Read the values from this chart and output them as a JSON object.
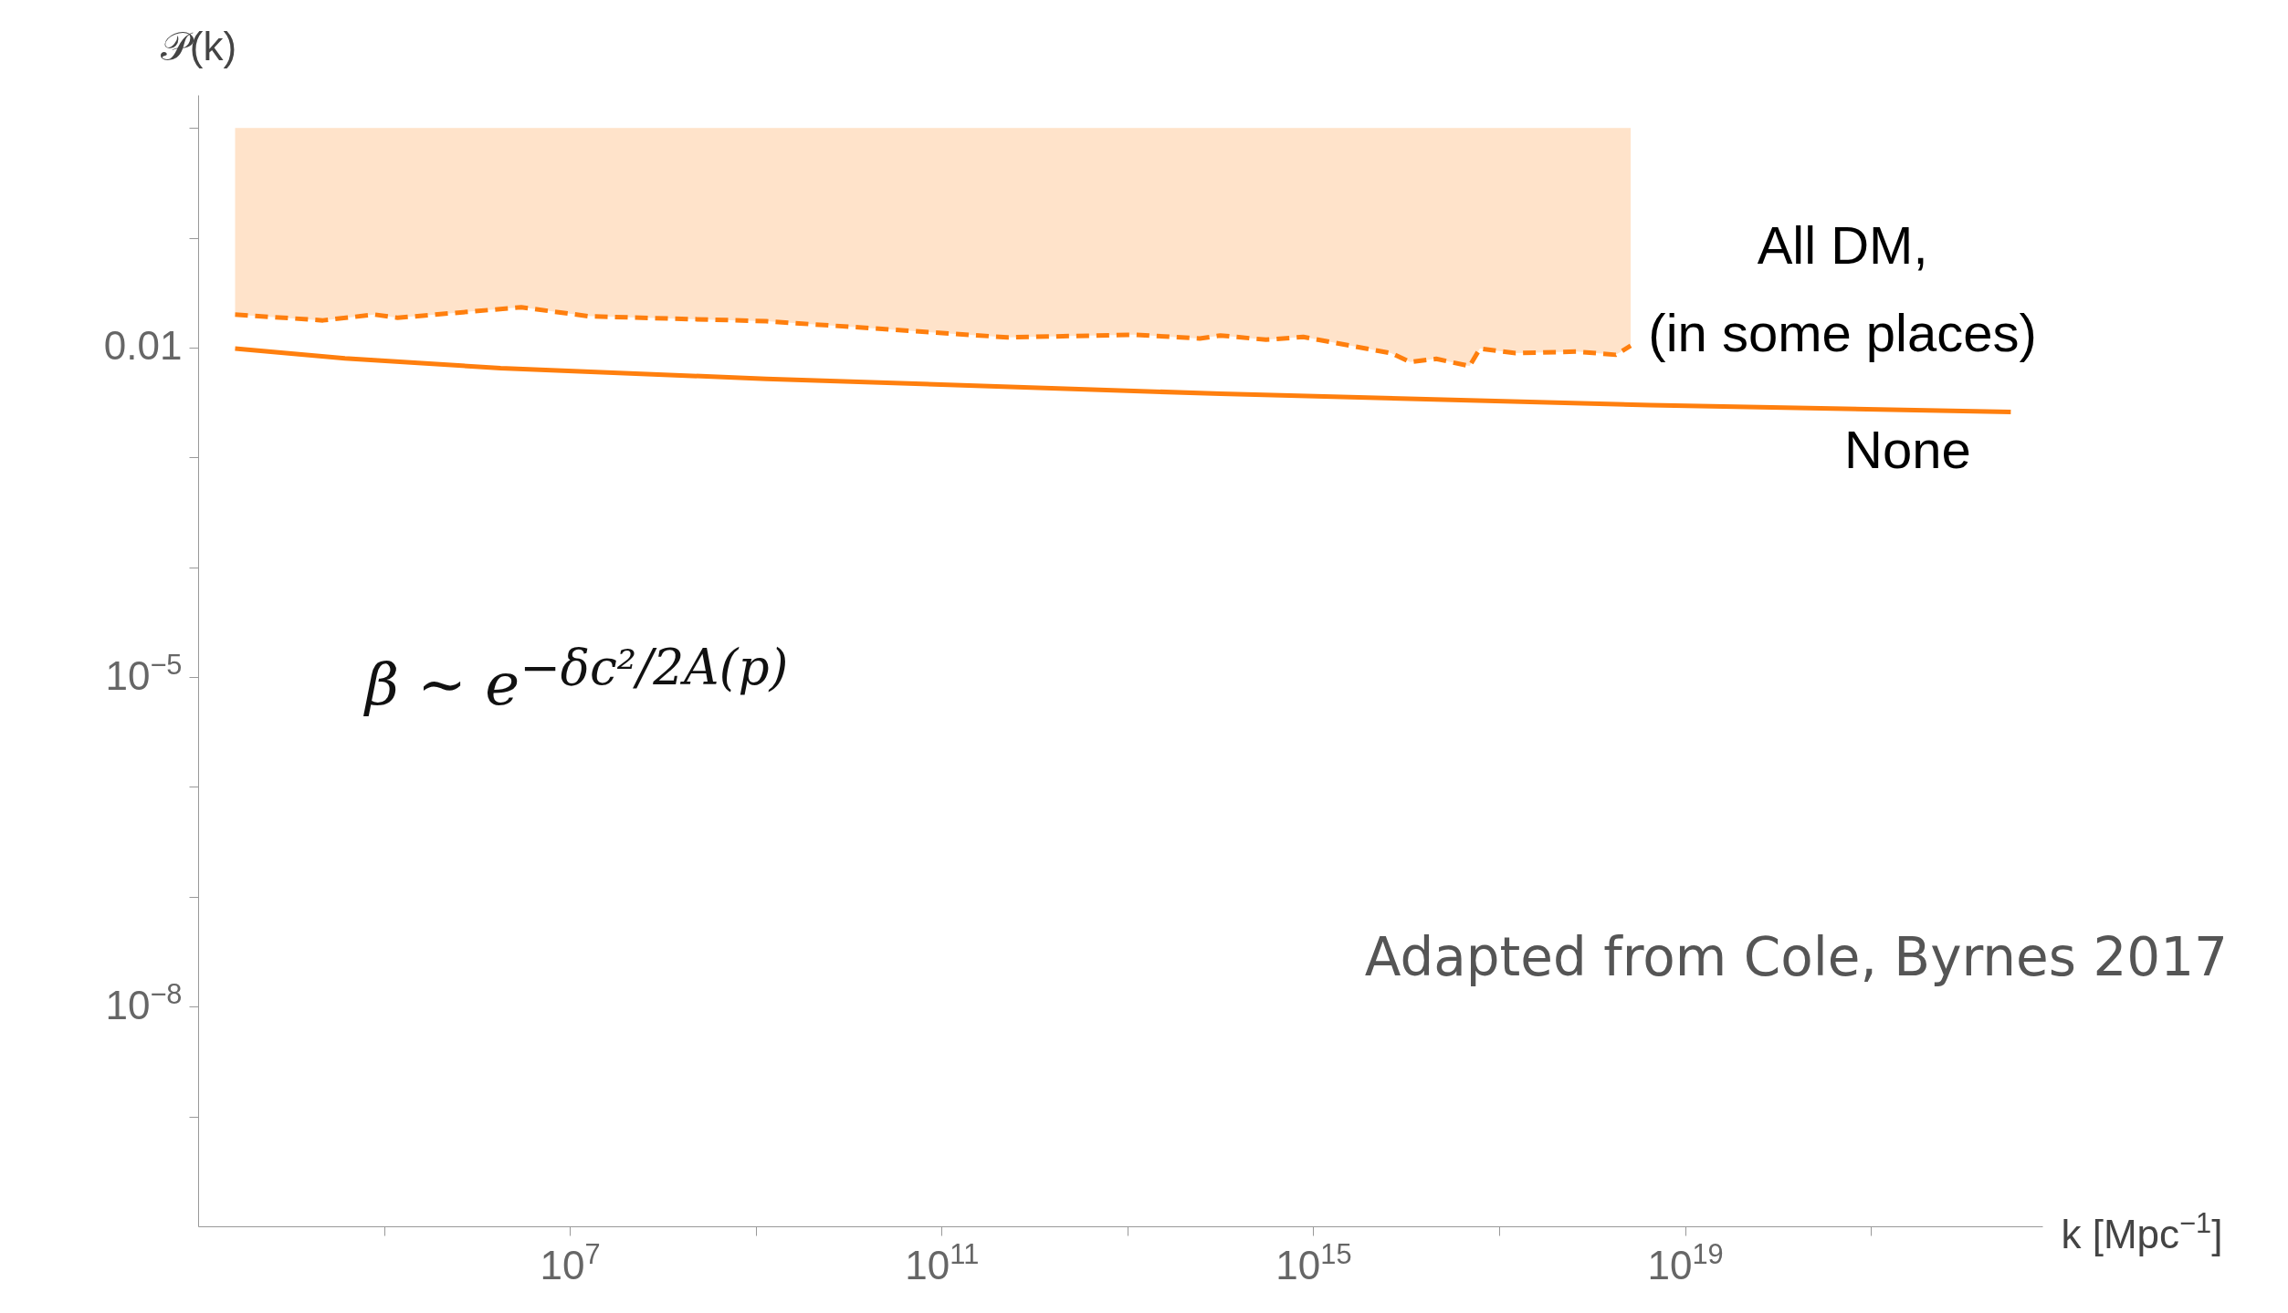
{
  "chart_data": {
    "type": "line",
    "xlabel": "k [Mpc$^{−1}$]",
    "ylabel": "𝒫(k)",
    "log": "xy",
    "grid": false,
    "xlim": [
      1000,
      7e+22
    ],
    "ylim": [
      1e-10,
      2
    ],
    "xticks": [
      {
        "value": 100000.0,
        "label": null
      },
      {
        "value": 10000000.0,
        "label": "10$^{7}$"
      },
      {
        "value": 1000000000.0,
        "label": null
      },
      {
        "value": 100000000000.0,
        "label": "10$^{11}$"
      },
      {
        "value": 10000000000000.0,
        "label": null
      },
      {
        "value": 1000000000000000.0,
        "label": "10$^{15}$"
      },
      {
        "value": 1e+17,
        "label": null
      },
      {
        "value": 1e+19,
        "label": "10$^{19}$"
      },
      {
        "value": 1e+21,
        "label": null
      }
    ],
    "yticks": [
      {
        "value": 1e-09,
        "label": null
      },
      {
        "value": 1e-08,
        "label": "10$^{−8}$"
      },
      {
        "value": 1e-07,
        "label": null
      },
      {
        "value": 1e-06,
        "label": null
      },
      {
        "value": 1e-05,
        "label": "10$^{−5}$"
      },
      {
        "value": 0.0001,
        "label": null
      },
      {
        "value": 0.001,
        "label": null
      },
      {
        "value": 0.01,
        "label": "0.01"
      },
      {
        "value": 0.1,
        "label": null
      },
      {
        "value": 1,
        "label": null
      }
    ],
    "series": [
      {
        "name": "None",
        "color": "#ff7f0e",
        "line_style": "solid",
        "x": [
          2500.0,
          38000.0,
          1800000.0,
          1300000000.0,
          100000000000000.0,
          4.2e+18,
          3.2e+22
        ],
        "values": [
          0.0098,
          0.008,
          0.0065,
          0.0052,
          0.0038,
          0.003,
          0.0026
        ]
      },
      {
        "name": "All DM,\n(in some places)",
        "color": "#ff7f0e",
        "line_style": "dashed",
        "x": [
          2500.0,
          22000.0,
          79000.0,
          140000.0,
          3000000.0,
          16000000.0,
          1300000000.0,
          510000000000.0,
          12000000000000.0,
          60000000000000.0,
          100000000000000.0,
          310000000000000.0,
          780000000000000.0,
          6900000000000000.0,
          1.1e+16,
          2.1e+16,
          4.8e+16,
          6.2e+16,
          1.5e+17,
          6.8e+17,
          1.8e+18,
          2.6e+18
        ],
        "values": [
          0.02,
          0.0177,
          0.02,
          0.0187,
          0.0233,
          0.0193,
          0.0174,
          0.0124,
          0.0131,
          0.0121,
          0.0129,
          0.0118,
          0.0125,
          0.0089,
          0.0074,
          0.0079,
          0.0068,
          0.0098,
          0.0089,
          0.0092,
          0.0086,
          0.0104
        ],
        "lower": [
          0.02,
          0.0177,
          0.02,
          0.0187,
          0.0233,
          0.0193,
          0.0174,
          0.0124,
          0.0131,
          0.0121,
          0.0129,
          0.0118,
          0.0125,
          0.0089,
          0.0074,
          0.0079,
          0.0068,
          0.0098,
          0.0089,
          0.0092,
          0.0086,
          0.0104
        ],
        "upper": [
          1,
          1,
          1,
          1,
          1,
          1,
          1,
          1,
          1,
          1,
          1,
          1,
          1,
          1,
          1,
          1,
          1,
          1,
          1,
          1,
          1,
          1
        ]
      }
    ],
    "annotations": [
      "β ∼ e$^{−δc²/2A(p)}$",
      "Adapted from Cole, Byrnes 2017"
    ]
  }
}
